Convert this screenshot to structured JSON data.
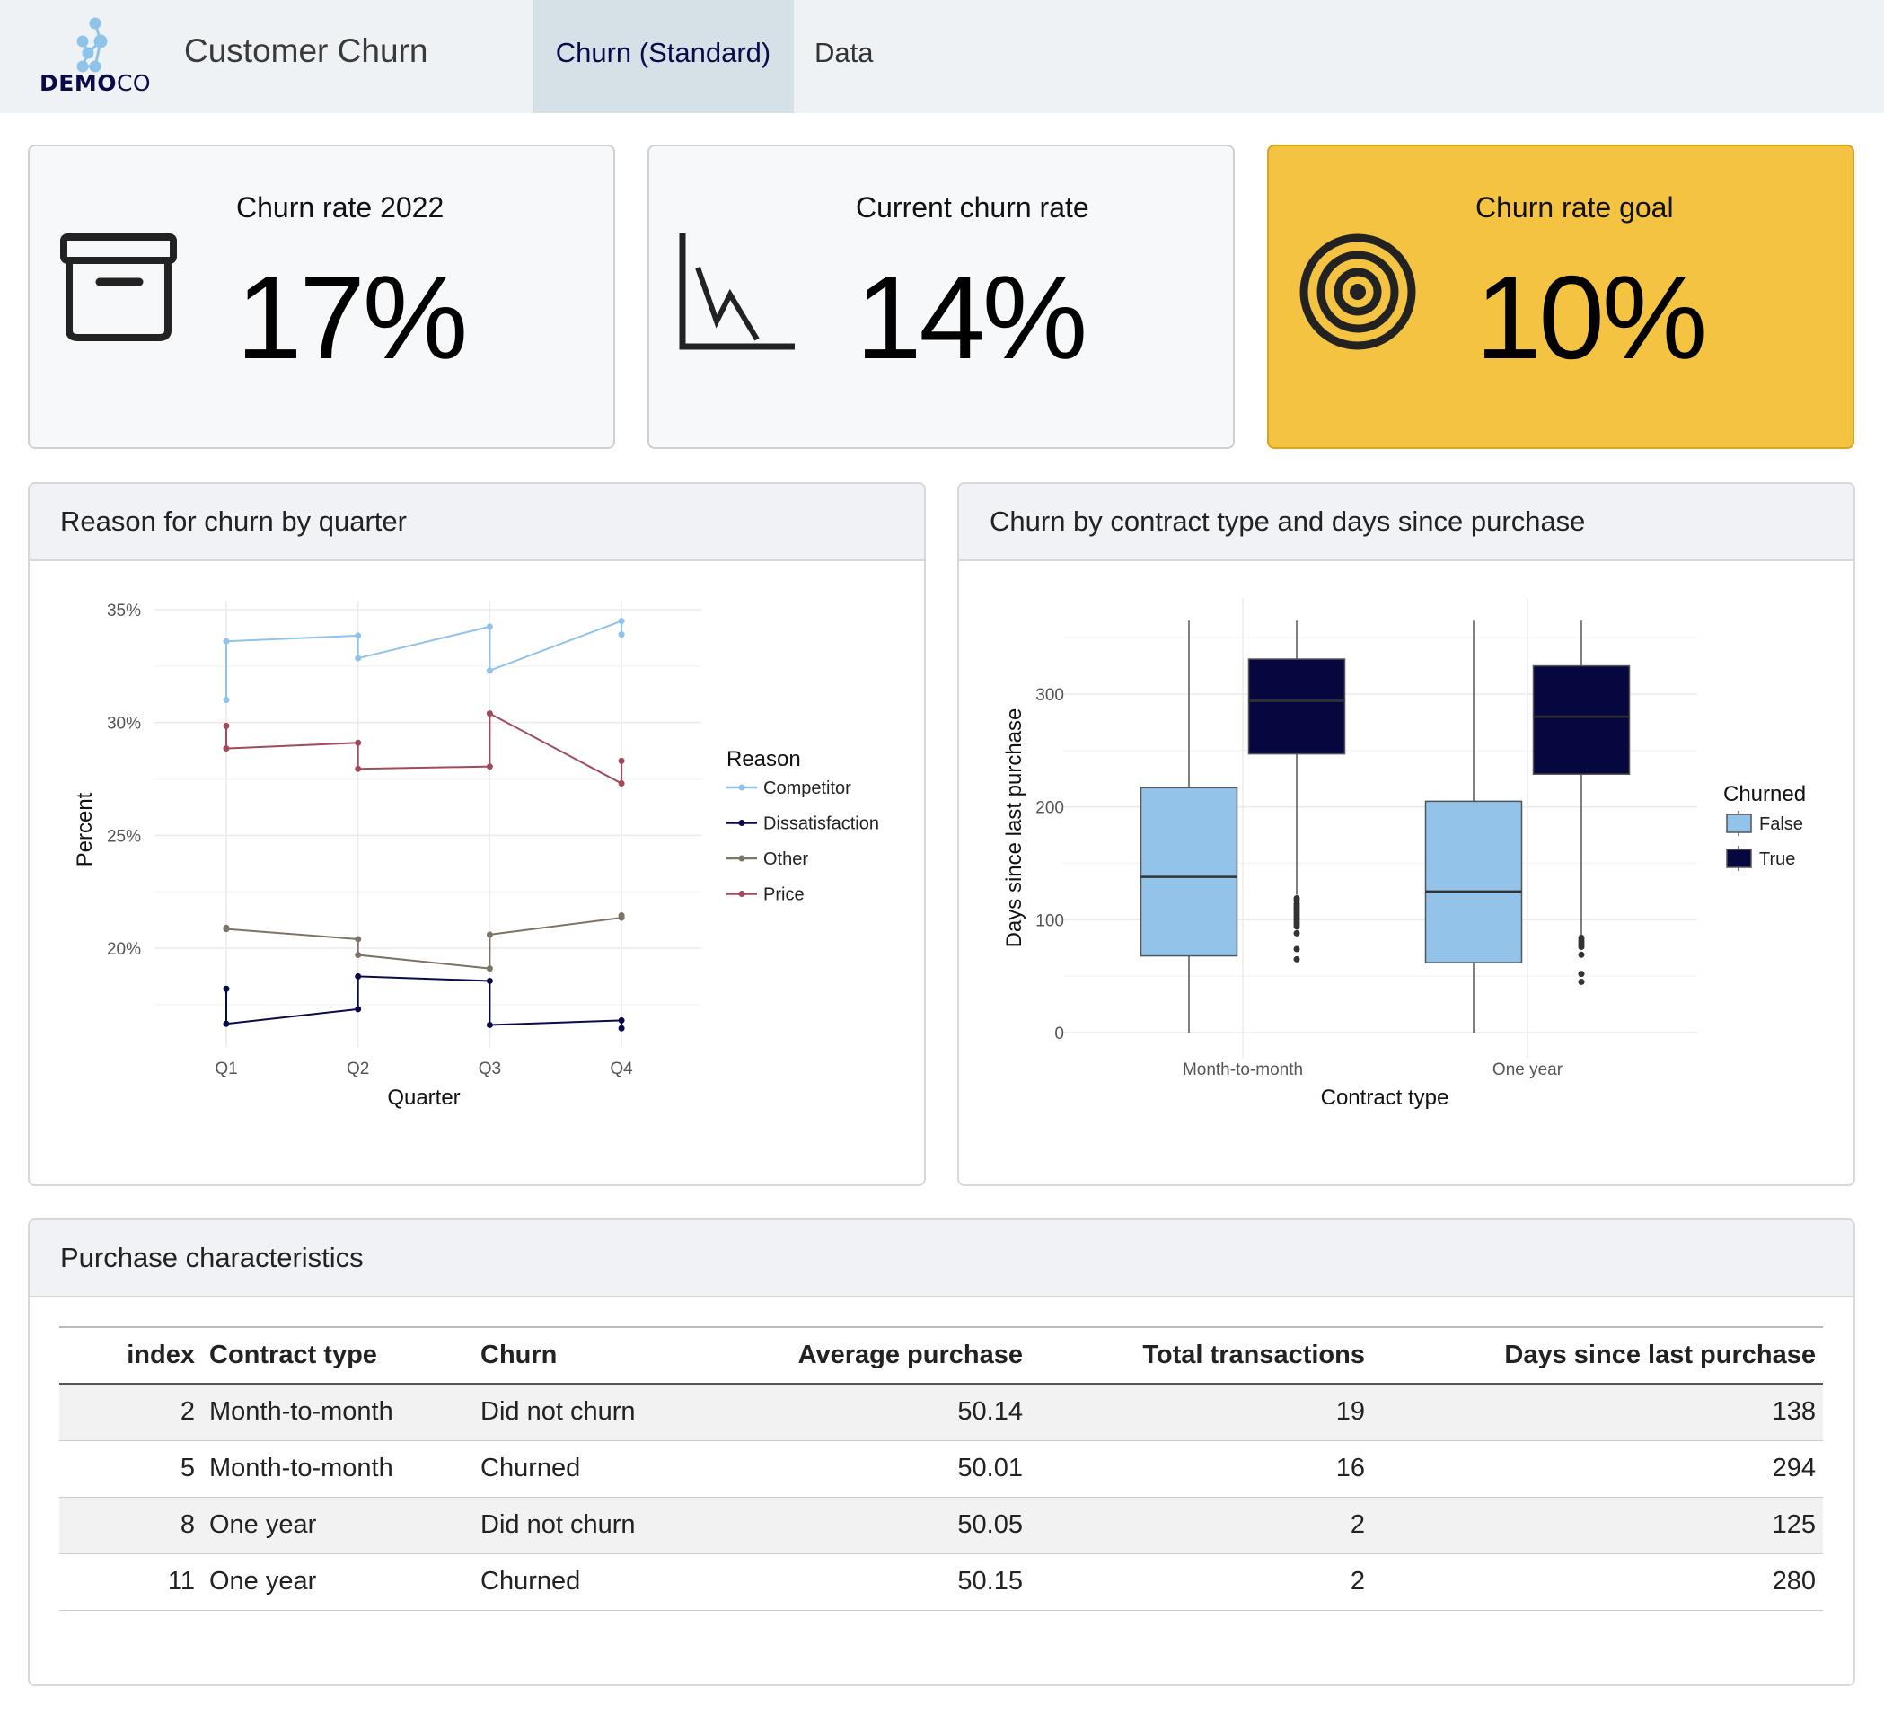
{
  "header": {
    "logo_text_bold": "DEMO",
    "logo_text_light": "CO",
    "app_title": "Customer Churn",
    "tabs": [
      {
        "label": "Churn (Standard)",
        "active": true
      },
      {
        "label": "Data",
        "active": false
      }
    ]
  },
  "value_boxes": [
    {
      "title": "Churn rate 2022",
      "value": "17%",
      "icon": "archive-box-icon"
    },
    {
      "title": "Current churn rate",
      "value": "14%",
      "icon": "chart-line-down-icon"
    },
    {
      "title": "Churn rate goal",
      "value": "10%",
      "icon": "bullseye-target-icon",
      "bg": "#f4c342"
    }
  ],
  "cards": {
    "reason_title": "Reason for churn by quarter",
    "contract_title": "Churn by contract type and days since purchase",
    "table_title": "Purchase characteristics"
  },
  "chart_data": [
    {
      "type": "line",
      "xlabel": "Quarter",
      "ylabel": "Percent",
      "categories": [
        "Q1",
        "Q2",
        "Q3",
        "Q4"
      ],
      "yticks": [
        "20%",
        "25%",
        "30%",
        "35%"
      ],
      "ytick_values": [
        20,
        25,
        30,
        35
      ],
      "ylim": [
        15.6,
        35.4
      ],
      "grid": true,
      "legend_title": "Reason",
      "legend_position": "right",
      "series": [
        {
          "name": "Competitor",
          "color": "#8fc3ea",
          "points": [
            [
              "Q1",
              31.0
            ],
            [
              "Q1",
              33.6
            ],
            [
              "Q2",
              33.85
            ],
            [
              "Q2",
              32.85
            ],
            [
              "Q3",
              34.25
            ],
            [
              "Q3",
              32.3
            ],
            [
              "Q4",
              34.5
            ],
            [
              "Q4",
              33.9
            ]
          ]
        },
        {
          "name": "Dissatisfaction",
          "color": "#0a0a4a",
          "points": [
            [
              "Q1",
              18.2
            ],
            [
              "Q1",
              16.65
            ],
            [
              "Q2",
              17.3
            ],
            [
              "Q2",
              18.75
            ],
            [
              "Q3",
              18.55
            ],
            [
              "Q3",
              16.6
            ],
            [
              "Q4",
              16.8
            ],
            [
              "Q4",
              16.45
            ]
          ]
        },
        {
          "name": "Other",
          "color": "#7d7466",
          "points": [
            [
              "Q1",
              20.9
            ],
            [
              "Q1",
              20.85
            ],
            [
              "Q2",
              20.4
            ],
            [
              "Q2",
              19.7
            ],
            [
              "Q3",
              19.1
            ],
            [
              "Q3",
              20.6
            ],
            [
              "Q4",
              21.35
            ],
            [
              "Q4",
              21.45
            ]
          ]
        },
        {
          "name": "Price",
          "color": "#a34a5a",
          "points": [
            [
              "Q1",
              29.85
            ],
            [
              "Q1",
              28.85
            ],
            [
              "Q2",
              29.1
            ],
            [
              "Q2",
              27.95
            ],
            [
              "Q3",
              28.05
            ],
            [
              "Q3",
              30.4
            ],
            [
              "Q4",
              27.3
            ],
            [
              "Q4",
              28.3
            ]
          ]
        }
      ]
    },
    {
      "type": "box",
      "xlabel": "Contract type",
      "ylabel": "Days since last purchase",
      "categories": [
        "Month-to-month",
        "One year"
      ],
      "yticks": [
        "0",
        "100",
        "200",
        "300"
      ],
      "ytick_values": [
        0,
        100,
        200,
        300
      ],
      "ylim": [
        -15,
        385
      ],
      "grid": true,
      "legend_title": "Churned",
      "legend_position": "right",
      "groups": [
        {
          "name": "False",
          "color": "#93c3e8"
        },
        {
          "name": "True",
          "color": "#07073f"
        }
      ],
      "boxes": [
        {
          "category": "Month-to-month",
          "group": "False",
          "min": 0,
          "q1": 68,
          "median": 138,
          "q3": 217,
          "max": 365,
          "outliers": []
        },
        {
          "category": "Month-to-month",
          "group": "True",
          "min": 122,
          "q1": 247,
          "median": 294,
          "q3": 331,
          "max": 365,
          "outliers": [
            119,
            117,
            114,
            112,
            110,
            108,
            106,
            104,
            102,
            100,
            98,
            96,
            94,
            88,
            74,
            65
          ]
        },
        {
          "category": "One year",
          "group": "False",
          "min": 0,
          "q1": 62,
          "median": 125,
          "q3": 205,
          "max": 365,
          "outliers": []
        },
        {
          "category": "One year",
          "group": "True",
          "min": 86,
          "q1": 229,
          "median": 280,
          "q3": 325,
          "max": 365,
          "outliers": [
            84,
            82,
            80,
            78,
            76,
            69,
            52,
            45
          ]
        }
      ]
    }
  ],
  "table": {
    "columns": [
      "index",
      "Contract type",
      "Churn",
      "Average purchase",
      "Total transactions",
      "Days since last purchase"
    ],
    "rows": [
      [
        "2",
        "Month-to-month",
        "Did not churn",
        "50.14",
        "19",
        "138"
      ],
      [
        "5",
        "Month-to-month",
        "Churned",
        "50.01",
        "16",
        "294"
      ],
      [
        "8",
        "One year",
        "Did not churn",
        "50.05",
        "2",
        "125"
      ],
      [
        "11",
        "One year",
        "Churned",
        "50.15",
        "2",
        "280"
      ]
    ]
  }
}
